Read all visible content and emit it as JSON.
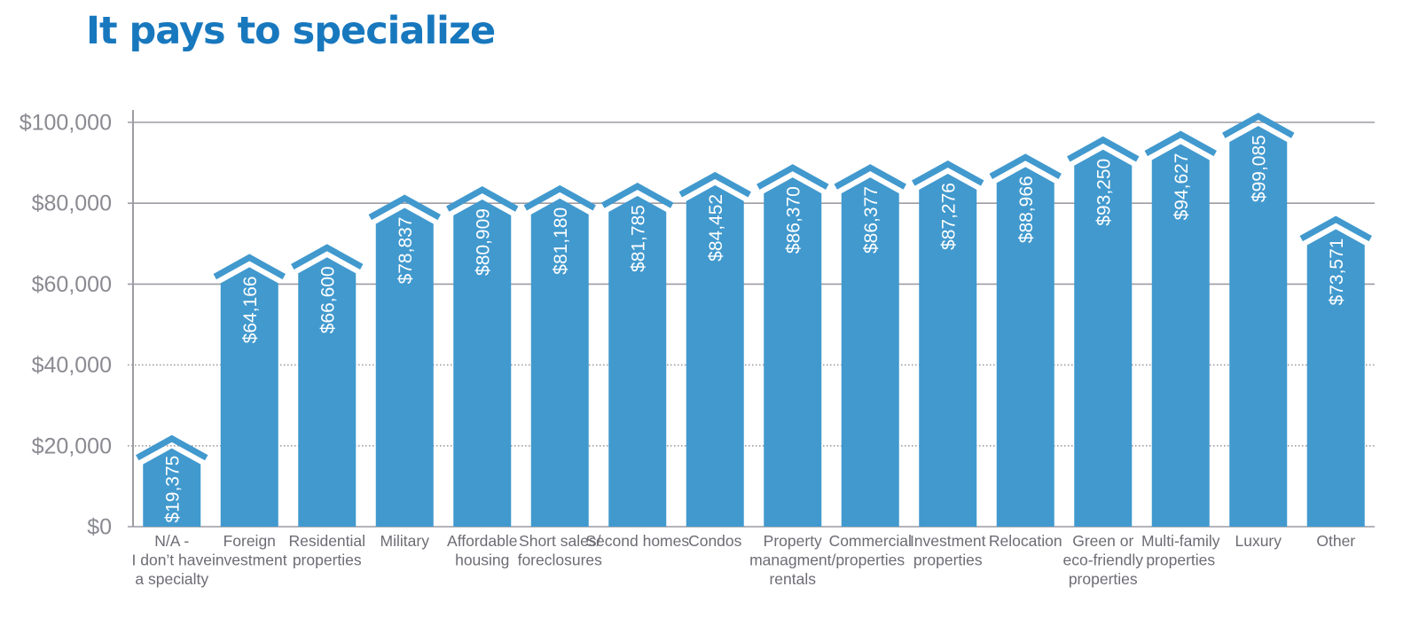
{
  "header": {
    "title": "It pays to specialize",
    "title_color": "#1878BE"
  },
  "chart_data": {
    "type": "bar",
    "title": "It pays to specialize",
    "xlabel": "",
    "ylabel": "",
    "ylim": [
      0,
      100000
    ],
    "grid": "horizontal",
    "legend": null,
    "orientation": "vertical",
    "bar_shape": "peaked-top-with-chevron-cap",
    "colors": {
      "bar": "#4199CE",
      "value_label": "#FFFFFF",
      "grid_line": "#9C9CA4",
      "axis_line": "#9C9CA4",
      "y_tick_label": "#8A8A92",
      "category_label": "#6C6C74"
    },
    "y_ticks": [
      {
        "value": 0,
        "label": "$0"
      },
      {
        "value": 20000,
        "label": "$20,000"
      },
      {
        "value": 40000,
        "label": "$40,000"
      },
      {
        "value": 60000,
        "label": "$60,000"
      },
      {
        "value": 80000,
        "label": "$80,000"
      },
      {
        "value": 100000,
        "label": "$100,000"
      }
    ],
    "bars": [
      {
        "category_lines": [
          "N/A -",
          "I don’t have",
          "a specialty"
        ],
        "value": 19375,
        "value_label": "$19,375"
      },
      {
        "category_lines": [
          "Foreign",
          "investment"
        ],
        "value": 64166,
        "value_label": "$64,166"
      },
      {
        "category_lines": [
          "Residential",
          "properties"
        ],
        "value": 66600,
        "value_label": "$66,600"
      },
      {
        "category_lines": [
          "Military"
        ],
        "value": 78837,
        "value_label": "$78,837"
      },
      {
        "category_lines": [
          "Affordable",
          "housing"
        ],
        "value": 80909,
        "value_label": "$80,909"
      },
      {
        "category_lines": [
          "Short sales/",
          "foreclosures"
        ],
        "value": 81180,
        "value_label": "$81,180"
      },
      {
        "category_lines": [
          "Second homes"
        ],
        "value": 81785,
        "value_label": "$81,785"
      },
      {
        "category_lines": [
          "Condos"
        ],
        "value": 84452,
        "value_label": "$84,452"
      },
      {
        "category_lines": [
          "Property",
          "managment/",
          "rentals"
        ],
        "value": 86370,
        "value_label": "$86,370"
      },
      {
        "category_lines": [
          "Commercial",
          "properties"
        ],
        "value": 86377,
        "value_label": "$86,377"
      },
      {
        "category_lines": [
          "Investment",
          "properties"
        ],
        "value": 87276,
        "value_label": "$87,276"
      },
      {
        "category_lines": [
          "Relocation"
        ],
        "value": 88966,
        "value_label": "$88,966"
      },
      {
        "category_lines": [
          "Green or",
          "eco-friendly",
          "properties"
        ],
        "value": 93250,
        "value_label": "$93,250"
      },
      {
        "category_lines": [
          "Multi-family",
          "properties"
        ],
        "value": 94627,
        "value_label": "$94,627"
      },
      {
        "category_lines": [
          "Luxury"
        ],
        "value": 99085,
        "value_label": "$99,085"
      },
      {
        "category_lines": [
          "Other"
        ],
        "value": 73571,
        "value_label": "$73,571"
      }
    ]
  }
}
